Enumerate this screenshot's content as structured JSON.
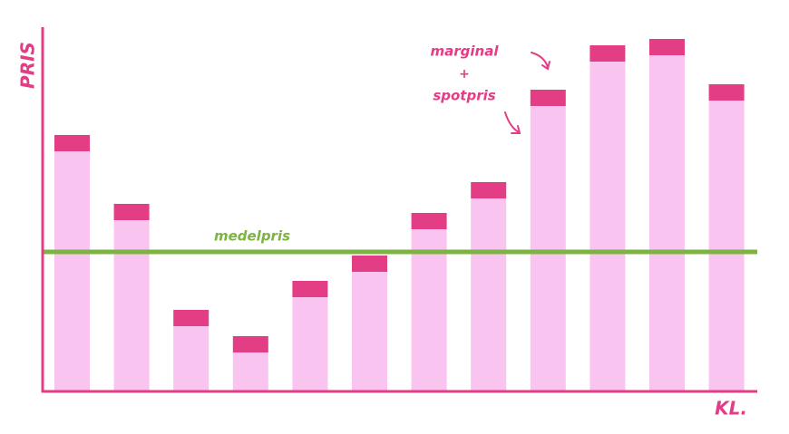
{
  "chart_data": {
    "type": "stacked-bar",
    "y_label": "PRIS",
    "x_label": "KL.",
    "categories": [
      null,
      null,
      null,
      null,
      null,
      null,
      null,
      null,
      null,
      null,
      null,
      null
    ],
    "series": [
      {
        "name": "spotpris",
        "color": "#f9c4ef",
        "values": [
          265,
          189,
          72,
          43,
          104,
          132,
          179,
          213,
          315,
          364,
          371,
          321
        ]
      },
      {
        "name": "marginal",
        "color": "#e33d86",
        "values": [
          18,
          18,
          18,
          18,
          18,
          18,
          18,
          18,
          18,
          18,
          18,
          18
        ]
      }
    ],
    "legend_separator": "+",
    "reference_line": {
      "label": "medelpris",
      "value": 154,
      "color": "#7cb342"
    },
    "axis_color": "#e33d86",
    "ylim": [
      0,
      400
    ]
  }
}
